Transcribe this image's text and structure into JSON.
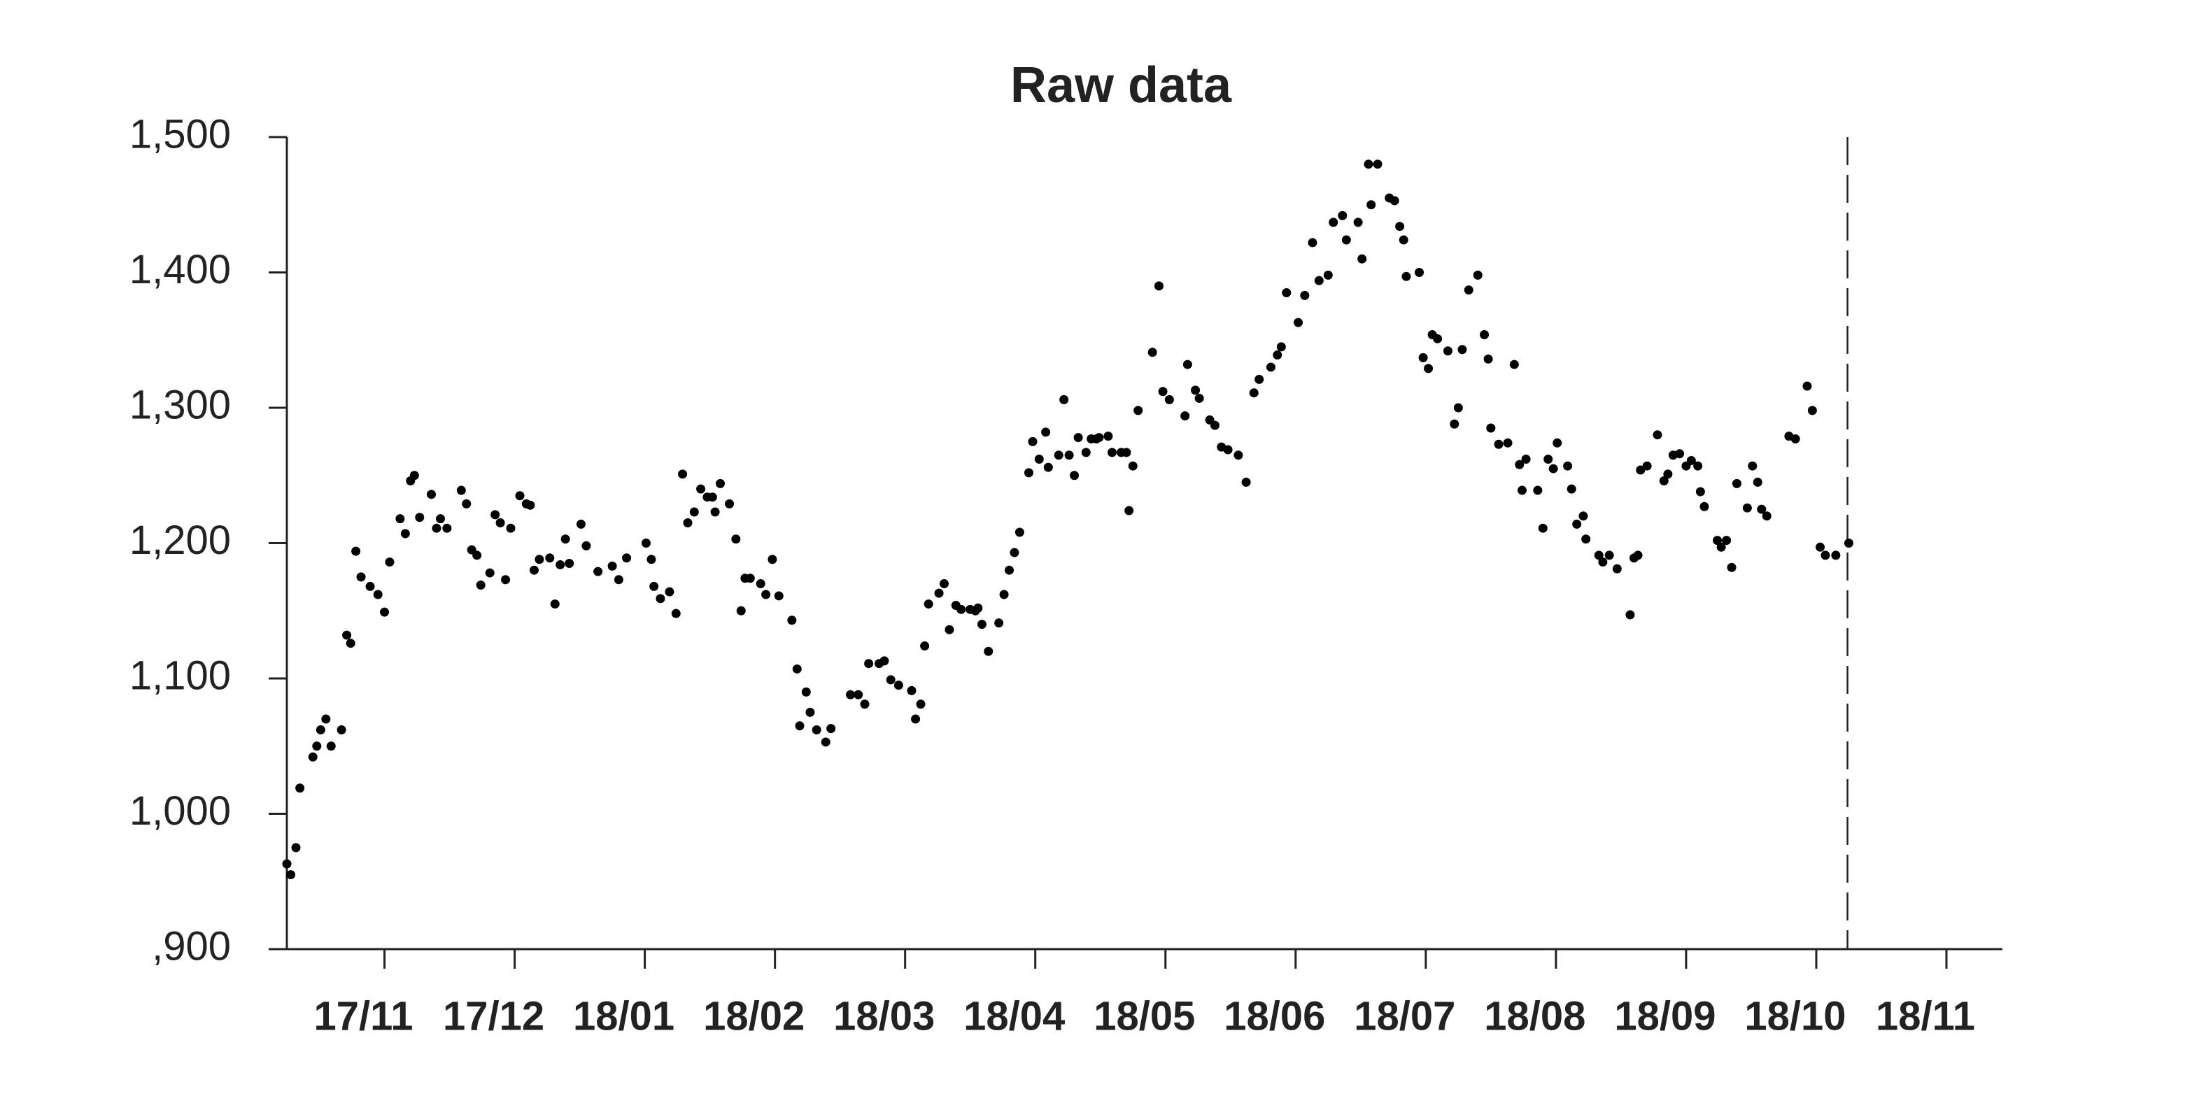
{
  "chart_data": {
    "type": "scatter",
    "title": "Raw data",
    "color": "#000000",
    "grid": false,
    "vline": 12.24,
    "xlim": [
      0.25,
      13.43
    ],
    "ylim": [
      900,
      1500
    ],
    "xticks": [
      {
        "value": 1,
        "label": "17/11"
      },
      {
        "value": 2,
        "label": "17/12"
      },
      {
        "value": 3,
        "label": "18/01"
      },
      {
        "value": 4,
        "label": "18/02"
      },
      {
        "value": 5,
        "label": "18/03"
      },
      {
        "value": 6,
        "label": "18/04"
      },
      {
        "value": 7,
        "label": "18/05"
      },
      {
        "value": 8,
        "label": "18/06"
      },
      {
        "value": 9,
        "label": "18/07"
      },
      {
        "value": 10,
        "label": "18/08"
      },
      {
        "value": 11,
        "label": "18/09"
      },
      {
        "value": 12,
        "label": "18/10"
      },
      {
        "value": 13,
        "label": "18/11"
      }
    ],
    "yticks": [
      {
        "value": 900,
        "label": ",900"
      },
      {
        "value": 1000,
        "label": "1,000"
      },
      {
        "value": 1100,
        "label": "1,100"
      },
      {
        "value": 1200,
        "label": "1,200"
      },
      {
        "value": 1300,
        "label": "1,300"
      },
      {
        "value": 1400,
        "label": "1,400"
      },
      {
        "value": 1500,
        "label": "1,500"
      }
    ],
    "x": [
      0.25,
      0.28,
      0.32,
      0.35,
      0.45,
      0.48,
      0.51,
      0.55,
      0.59,
      0.67,
      0.71,
      0.74,
      0.78,
      0.82,
      0.89,
      0.95,
      1.0,
      1.04,
      1.12,
      1.16,
      1.2,
      1.23,
      1.27,
      1.36,
      1.4,
      1.43,
      1.48,
      1.59,
      1.63,
      1.67,
      1.71,
      1.74,
      1.81,
      1.85,
      1.89,
      1.93,
      1.97,
      2.04,
      2.09,
      2.12,
      2.15,
      2.19,
      2.27,
      2.31,
      2.35,
      2.39,
      2.42,
      2.51,
      2.55,
      2.64,
      2.75,
      2.8,
      2.86,
      3.01,
      3.05,
      3.07,
      3.12,
      3.19,
      3.24,
      3.29,
      3.33,
      3.38,
      3.43,
      3.48,
      3.52,
      3.54,
      3.58,
      3.65,
      3.7,
      3.74,
      3.77,
      3.81,
      3.89,
      3.93,
      3.98,
      4.03,
      4.13,
      4.17,
      4.19,
      4.24,
      4.27,
      4.32,
      4.39,
      4.43,
      4.58,
      4.64,
      4.69,
      4.72,
      4.8,
      4.84,
      4.89,
      4.95,
      5.05,
      5.08,
      5.12,
      5.15,
      5.18,
      5.26,
      5.3,
      5.34,
      5.39,
      5.43,
      5.5,
      5.54,
      5.56,
      5.59,
      5.64,
      5.72,
      5.76,
      5.8,
      5.84,
      5.88,
      5.95,
      5.98,
      6.03,
      6.08,
      6.1,
      6.18,
      6.22,
      6.26,
      6.3,
      6.33,
      6.39,
      6.43,
      6.47,
      6.49,
      6.56,
      6.59,
      6.66,
      6.7,
      6.72,
      6.75,
      6.79,
      6.9,
      6.95,
      6.98,
      7.03,
      7.15,
      7.17,
      7.23,
      7.26,
      7.34,
      7.38,
      7.43,
      7.48,
      7.56,
      7.62,
      7.68,
      7.72,
      7.81,
      7.86,
      7.89,
      7.93,
      8.02,
      8.07,
      8.13,
      8.18,
      8.25,
      8.29,
      8.36,
      8.39,
      8.48,
      8.51,
      8.56,
      8.58,
      8.63,
      8.72,
      8.76,
      8.8,
      8.83,
      8.85,
      8.95,
      8.98,
      9.02,
      9.05,
      9.09,
      9.17,
      9.22,
      9.25,
      9.28,
      9.33,
      9.4,
      9.45,
      9.48,
      9.5,
      9.56,
      9.63,
      9.68,
      9.72,
      9.74,
      9.77,
      9.86,
      9.9,
      9.94,
      9.98,
      10.01,
      10.09,
      10.12,
      10.16,
      10.21,
      10.23,
      10.33,
      10.36,
      10.41,
      10.47,
      10.57,
      10.6,
      10.63,
      10.65,
      10.7,
      10.78,
      10.83,
      10.86,
      10.9,
      10.95,
      11.0,
      11.04,
      11.09,
      11.11,
      11.14,
      11.24,
      11.27,
      11.31,
      11.35,
      11.39,
      11.47,
      11.51,
      11.55,
      11.58,
      11.62,
      11.79,
      11.84,
      11.93,
      11.97,
      12.03,
      12.07,
      12.15,
      12.25
    ],
    "values": [
      963,
      955,
      975,
      1019,
      1042,
      1050,
      1062,
      1070,
      1050,
      1062,
      1132,
      1126,
      1194,
      1175,
      1168,
      1162,
      1149,
      1186,
      1218,
      1207,
      1246,
      1250,
      1219,
      1236,
      1211,
      1218,
      1211,
      1239,
      1229,
      1195,
      1191,
      1169,
      1178,
      1221,
      1215,
      1173,
      1211,
      1235,
      1229,
      1228,
      1180,
      1188,
      1189,
      1155,
      1184,
      1203,
      1185,
      1214,
      1198,
      1179,
      1183,
      1173,
      1189,
      1200,
      1188,
      1168,
      1159,
      1164,
      1148,
      1251,
      1215,
      1223,
      1240,
      1234,
      1234,
      1223,
      1244,
      1229,
      1203,
      1150,
      1174,
      1174,
      1170,
      1162,
      1188,
      1161,
      1143,
      1107,
      1065,
      1090,
      1075,
      1062,
      1053,
      1063,
      1088,
      1088,
      1081,
      1111,
      1111,
      1113,
      1099,
      1095,
      1091,
      1070,
      1081,
      1124,
      1155,
      1163,
      1170,
      1136,
      1154,
      1151,
      1151,
      1150,
      1152,
      1140,
      1120,
      1141,
      1162,
      1180,
      1193,
      1208,
      1252,
      1275,
      1262,
      1282,
      1256,
      1265,
      1306,
      1265,
      1250,
      1278,
      1267,
      1277,
      1277,
      1278,
      1279,
      1267,
      1267,
      1267,
      1224,
      1257,
      1298,
      1341,
      1390,
      1312,
      1306,
      1294,
      1332,
      1313,
      1307,
      1291,
      1287,
      1271,
      1269,
      1265,
      1245,
      1311,
      1321,
      1330,
      1339,
      1345,
      1385,
      1363,
      1383,
      1422,
      1394,
      1398,
      1437,
      1442,
      1424,
      1437,
      1410,
      1480,
      1450,
      1480,
      1455,
      1453,
      1434,
      1424,
      1397,
      1400,
      1337,
      1329,
      1354,
      1351,
      1342,
      1288,
      1300,
      1343,
      1387,
      1398,
      1354,
      1336,
      1285,
      1273,
      1274,
      1332,
      1258,
      1239,
      1262,
      1239,
      1211,
      1262,
      1255,
      1274,
      1257,
      1240,
      1214,
      1220,
      1203,
      1191,
      1186,
      1191,
      1181,
      1147,
      1189,
      1191,
      1254,
      1257,
      1280,
      1246,
      1251,
      1265,
      1266,
      1257,
      1261,
      1257,
      1238,
      1227,
      1202,
      1197,
      1202,
      1182,
      1244,
      1226,
      1257,
      1245,
      1225,
      1220,
      1279,
      1277,
      1316,
      1298,
      1197,
      1191,
      1191,
      1200
    ]
  }
}
